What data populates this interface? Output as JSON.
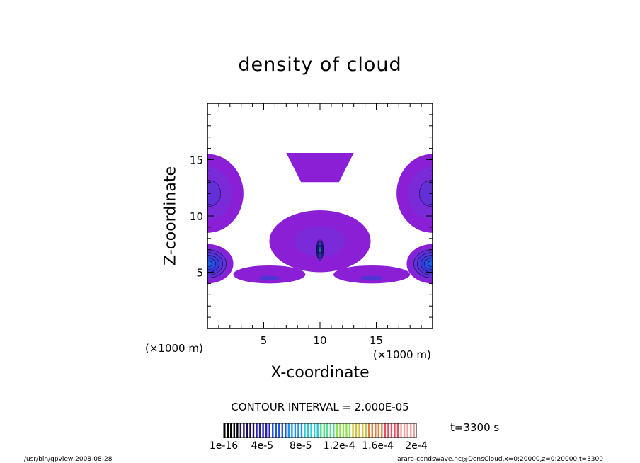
{
  "chart_data": {
    "type": "heatmap",
    "title": "density of cloud",
    "xlabel": "X-coordinate",
    "ylabel": "Z-coordinate",
    "x_unit_label": "(×1000 m)",
    "x_unit_label_right": "(×1000 m)",
    "xlim": [
      0,
      20
    ],
    "ylim": [
      0,
      20
    ],
    "xticks": [
      5,
      10,
      15
    ],
    "yticks": [
      5,
      10,
      15
    ],
    "contour_interval": "CONTOUR INTERVAL = 2.000E-05",
    "time_label": "t=3300 s",
    "colorbar": {
      "tick_labels": [
        "1e-16",
        "4e-5",
        "8e-5",
        "1.2e-4",
        "1.6e-4",
        "2e-4"
      ],
      "tick_values": [
        1e-16,
        4e-05,
        8e-05,
        0.00012,
        0.00016,
        0.0002
      ],
      "range": [
        0,
        0.0002
      ]
    },
    "regions": [
      {
        "name": "upper-anvil",
        "x": [
          7.0,
          13.0
        ],
        "z": [
          13.0,
          15.6
        ],
        "level": 1
      },
      {
        "name": "central-plume",
        "x": [
          5.5,
          14.5
        ],
        "z": [
          5.0,
          10.5
        ],
        "level": 2
      },
      {
        "name": "central-core",
        "x": [
          9.6,
          10.4
        ],
        "z": [
          5.8,
          8.2
        ],
        "level": 9,
        "peak": 0.00018
      },
      {
        "name": "low-band-left",
        "x": [
          2.3,
          8.7
        ],
        "z": [
          4.0,
          5.6
        ],
        "level": 1
      },
      {
        "name": "low-band-right",
        "x": [
          11.2,
          18.0
        ],
        "z": [
          4.0,
          5.6
        ],
        "level": 1
      },
      {
        "name": "left-edge-upper",
        "x": [
          0,
          3.2
        ],
        "z": [
          8.5,
          15.5
        ],
        "level": 3
      },
      {
        "name": "left-edge-lower",
        "x": [
          0,
          2.3
        ],
        "z": [
          4.0,
          7.5
        ],
        "level": 7
      },
      {
        "name": "right-edge-upper",
        "x": [
          16.8,
          20
        ],
        "z": [
          8.5,
          15.5
        ],
        "level": 3
      },
      {
        "name": "right-edge-lower",
        "x": [
          17.7,
          20
        ],
        "z": [
          4.0,
          7.5
        ],
        "level": 7
      }
    ]
  },
  "footer": {
    "left": "/usr/bin/gpview   2008-08-28",
    "right": "arare-condswave.nc@DensCloud,x=0:20000,z=0:20000,t=3300"
  }
}
